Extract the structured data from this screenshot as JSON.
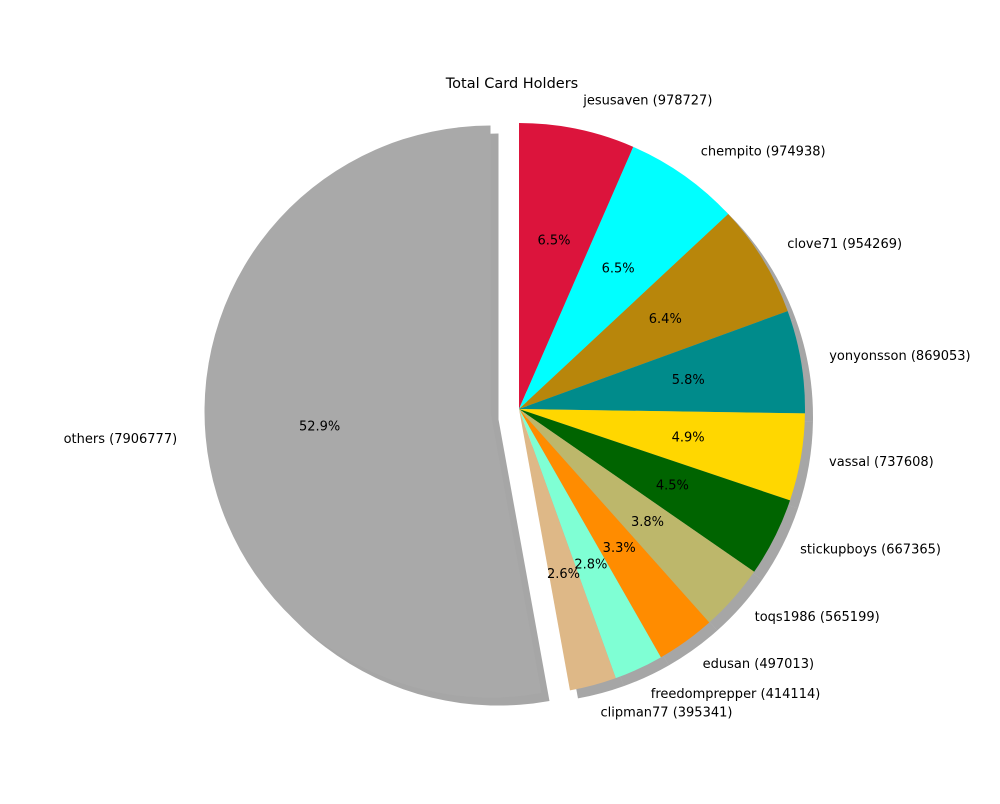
{
  "chart_data": {
    "type": "pie",
    "title": "Total Card Holders",
    "start_angle_deg": 90,
    "direction": "clockwise",
    "shadow": true,
    "explode": "others",
    "slices": [
      {
        "label": "jesusaven (978727)",
        "value": 978727,
        "pct": "6.5%",
        "color": "#DC143C"
      },
      {
        "label": "chempito (974938)",
        "value": 974938,
        "pct": "6.5%",
        "color": "#00FFFF"
      },
      {
        "label": "clove71 (954269)",
        "value": 954269,
        "pct": "6.4%",
        "color": "#B8860B"
      },
      {
        "label": "yonyonsson (869053)",
        "value": 869053,
        "pct": "5.8%",
        "color": "#008B8B"
      },
      {
        "label": "vassal (737608)",
        "value": 737608,
        "pct": "4.9%",
        "color": "#FFD700"
      },
      {
        "label": "stickupboys (667365)",
        "value": 667365,
        "pct": "4.5%",
        "color": "#006400"
      },
      {
        "label": "toqs1986 (565199)",
        "value": 565199,
        "pct": "3.8%",
        "color": "#BDB76B"
      },
      {
        "label": "edusan (497013)",
        "value": 497013,
        "pct": "3.3%",
        "color": "#FF8C00"
      },
      {
        "label": "freedomprepper (414114)",
        "value": 414114,
        "pct": "2.8%",
        "color": "#7FFFD4"
      },
      {
        "label": "clipman77 (395341)",
        "value": 395341,
        "pct": "2.6%",
        "color": "#DEB887"
      },
      {
        "label": "others (7906777)",
        "value": 7906777,
        "pct": "52.9%",
        "color": "#A9A9A9"
      }
    ]
  }
}
